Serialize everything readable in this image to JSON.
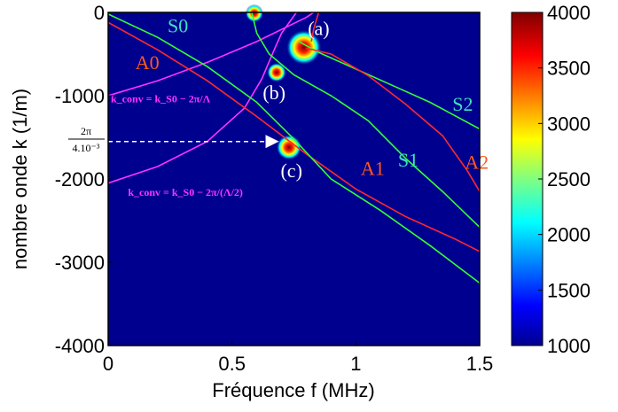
{
  "chart_data": {
    "type": "heatmap",
    "xlabel": "Fréquence f (MHz)",
    "ylabel": "nombre onde k (1/m)",
    "xlim": [
      0,
      1.5
    ],
    "ylim": [
      -4000,
      0
    ],
    "x_ticks": [
      "0",
      "0.5",
      "1",
      "1.5"
    ],
    "y_ticks": [
      "0",
      "-1000",
      "-2000",
      "-3000",
      "-4000"
    ],
    "colorbar": {
      "range": [
        1000,
        4000
      ],
      "ticks": [
        "4000",
        "3500",
        "3000",
        "2500",
        "2000",
        "1500",
        "1000"
      ],
      "colormap": "jet"
    },
    "background_color": "#00008f",
    "curves": [
      {
        "name": "A0",
        "color": "#ff2a2a",
        "label_at": [
          0.11,
          -680
        ],
        "points": [
          [
            0,
            -120
          ],
          [
            0.2,
            -450
          ],
          [
            0.4,
            -820
          ],
          [
            0.6,
            -1250
          ],
          [
            0.8,
            -1700
          ],
          [
            1.0,
            -2120
          ],
          [
            1.2,
            -2450
          ],
          [
            1.4,
            -2720
          ],
          [
            1.5,
            -2870
          ]
        ]
      },
      {
        "name": "S0",
        "color": "#33ff33",
        "label_at": [
          0.24,
          -240
        ],
        "points": [
          [
            0,
            -20
          ],
          [
            0.2,
            -300
          ],
          [
            0.4,
            -650
          ],
          [
            0.6,
            -1080
          ],
          [
            0.75,
            -1520
          ],
          [
            0.9,
            -2000
          ],
          [
            1.1,
            -2380
          ],
          [
            1.3,
            -2800
          ],
          [
            1.5,
            -3250
          ]
        ]
      },
      {
        "name": "S1",
        "color": "#33ff33",
        "label_at": [
          1.17,
          -1850
        ],
        "points": [
          [
            0.58,
            0
          ],
          [
            0.6,
            -250
          ],
          [
            0.65,
            -500
          ],
          [
            0.75,
            -750
          ],
          [
            0.9,
            -1000
          ],
          [
            1.05,
            -1300
          ],
          [
            1.2,
            -1750
          ],
          [
            1.35,
            -2150
          ],
          [
            1.5,
            -2580
          ]
        ]
      },
      {
        "name": "S2",
        "color": "#33ff33",
        "label_at": [
          1.39,
          -1180
        ],
        "points": [
          [
            0.77,
            -350
          ],
          [
            0.85,
            -480
          ],
          [
            1.0,
            -680
          ],
          [
            1.15,
            -880
          ],
          [
            1.3,
            -1080
          ],
          [
            1.5,
            -1400
          ]
        ]
      },
      {
        "name": "A1",
        "color": "#ff2a2a",
        "label_at": [
          1.02,
          -1950
        ],
        "points": [
          [
            0.8,
            -430
          ],
          [
            0.9,
            -500
          ],
          [
            1.05,
            -760
          ],
          [
            1.2,
            -1100
          ],
          [
            1.35,
            -1480
          ],
          [
            1.45,
            -1900
          ],
          [
            1.5,
            -2150
          ]
        ]
      },
      {
        "name": "A2",
        "color": "#ff2a2a",
        "label_at": [
          1.44,
          -1880
        ],
        "points": [
          [
            0.85,
            0
          ],
          [
            0.83,
            -200
          ],
          [
            0.82,
            -350
          ]
        ]
      }
    ],
    "conversion_lines": [
      {
        "color": "#ff33ff",
        "points": [
          [
            0,
            -1000
          ],
          [
            0.2,
            -820
          ],
          [
            0.4,
            -600
          ],
          [
            0.6,
            -350
          ],
          [
            0.8,
            -60
          ],
          [
            0.83,
            0
          ]
        ]
      },
      {
        "color": "#ff33ff",
        "points": [
          [
            0,
            -2050
          ],
          [
            0.2,
            -1850
          ],
          [
            0.4,
            -1550
          ],
          [
            0.55,
            -1150
          ],
          [
            0.62,
            -800
          ],
          [
            0.67,
            -450
          ],
          [
            0.7,
            -250
          ],
          [
            0.76,
            0
          ]
        ]
      }
    ],
    "hotspots": [
      {
        "label": "(a)",
        "f": 0.79,
        "k": -420,
        "size": 1.0
      },
      {
        "label": "(b)",
        "f": 0.68,
        "k": -720,
        "size": 0.35
      },
      {
        "label": "(c)",
        "f": 0.73,
        "k": -1620,
        "size": 0.6
      },
      {
        "label": "",
        "f": 0.59,
        "k": -10,
        "size": 0.3
      }
    ],
    "hotspot_labels": [
      {
        "text": "(a)",
        "at": [
          0.85,
          -270
        ]
      },
      {
        "text": "(b)",
        "at": [
          0.67,
          -1040
        ]
      },
      {
        "text": "(c)",
        "at": [
          0.74,
          -1980
        ]
      }
    ],
    "annotations": {
      "fraction_numerator": "2π",
      "fraction_denominator": "4.10⁻³",
      "arrow_k": -1550,
      "formula1": {
        "text": "k_conv = k_S0 − 2π/Λ",
        "at": [
          0.0,
          -1080
        ]
      },
      "formula2": {
        "text": "k_conv = k_S0 − 2π/(Λ/2)",
        "at": [
          0.08,
          -2200
        ]
      }
    }
  }
}
